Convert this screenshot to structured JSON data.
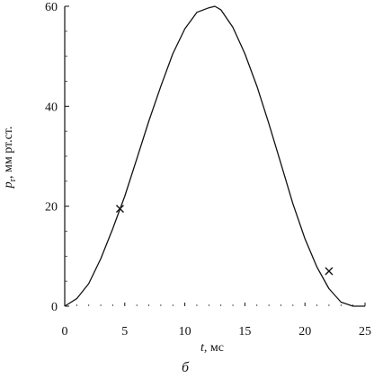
{
  "chart_data": {
    "type": "line",
    "title": "",
    "xlabel_var": "t",
    "xlabel_unit": ", мс",
    "ylabel_var": "p",
    "ylabel_sub": "r",
    "ylabel_unit": ", мм рт.ст.",
    "caption": "б",
    "xlim": [
      0,
      25
    ],
    "ylim": [
      0,
      60
    ],
    "xticks": [
      0,
      5,
      10,
      15,
      20,
      25
    ],
    "yticks": [
      0,
      20,
      40,
      60
    ],
    "grid": false,
    "series": [
      {
        "x": [
          0,
          1,
          2,
          3,
          4,
          5,
          6,
          7,
          8,
          9,
          10,
          11,
          12,
          12.5,
          13,
          14,
          15,
          16,
          17,
          18,
          19,
          20,
          21,
          22,
          23,
          24,
          25
        ],
        "y": [
          0,
          1.5,
          4.5,
          9.5,
          15.5,
          22,
          29.5,
          37,
          44,
          50.5,
          55.5,
          58.8,
          59.7,
          60,
          59.3,
          55.8,
          50.5,
          44,
          36.5,
          28.5,
          20.5,
          13.5,
          7.8,
          3.5,
          0.8,
          0,
          0
        ]
      }
    ],
    "markers": [
      {
        "x": 4.6,
        "y": 19.5
      },
      {
        "x": 22.0,
        "y": 7.0
      }
    ]
  }
}
